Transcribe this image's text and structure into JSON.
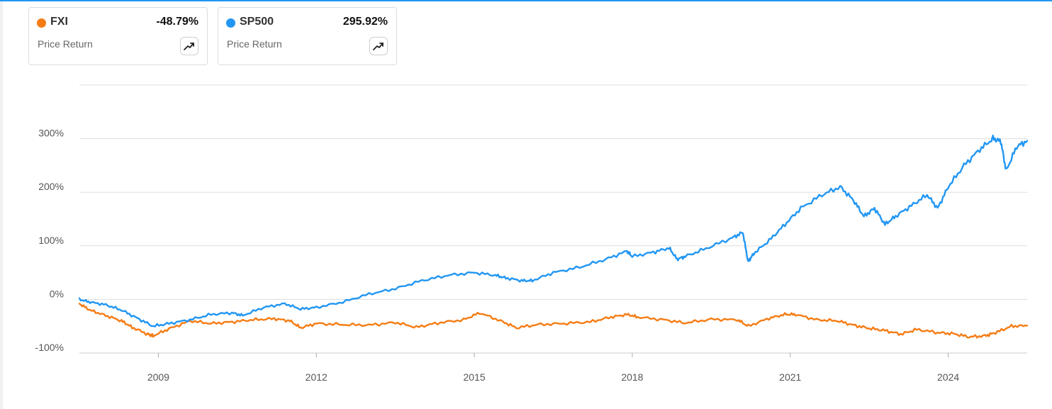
{
  "colors": {
    "fxi": "#f57c14",
    "sp500": "#2196f3",
    "grid": "#dddddd",
    "axis_text": "#555555",
    "accent_bar": "#2196f3"
  },
  "legend_cards": [
    {
      "ticker": "FXI",
      "return_pct": "-48.79%",
      "subtitle": "Price Return",
      "icon": "trend-up-icon"
    },
    {
      "ticker": "SP500",
      "return_pct": "295.92%",
      "subtitle": "Price Return",
      "icon": "trend-up-icon"
    }
  ],
  "chart_data": {
    "type": "line",
    "title": "",
    "xlabel": "",
    "ylabel": "",
    "x_unit": "year",
    "xlim": [
      2007.5,
      2025.5
    ],
    "ylim": [
      -100,
      400
    ],
    "y_ticks": [
      -100,
      0,
      100,
      200,
      300
    ],
    "y_tick_labels": [
      "-100%",
      "0%",
      "100%",
      "200%",
      "300%"
    ],
    "x_ticks": [
      2009,
      2012,
      2015,
      2018,
      2021,
      2024
    ],
    "x_tick_labels": [
      "2009",
      "2012",
      "2015",
      "2018",
      "2021",
      "2024"
    ],
    "grid": true,
    "series": [
      {
        "name": "FXI",
        "color": "#f57c14",
        "x": [
          2007.5,
          2007.7,
          2008.0,
          2008.3,
          2008.5,
          2008.8,
          2008.9,
          2009.2,
          2009.6,
          2010.0,
          2010.4,
          2010.8,
          2011.2,
          2011.5,
          2011.7,
          2012.0,
          2012.5,
          2013.0,
          2013.5,
          2013.9,
          2014.3,
          2014.8,
          2015.1,
          2015.5,
          2015.8,
          2016.2,
          2016.7,
          2017.2,
          2017.6,
          2017.9,
          2018.1,
          2018.6,
          2019.0,
          2019.5,
          2020.0,
          2020.2,
          2020.6,
          2020.9,
          2021.1,
          2021.5,
          2021.9,
          2022.2,
          2022.5,
          2022.8,
          2023.1,
          2023.4,
          2023.8,
          2024.1,
          2024.4,
          2024.7,
          2024.9,
          2025.2,
          2025.5
        ],
        "y": [
          -8,
          -20,
          -30,
          -40,
          -52,
          -65,
          -68,
          -55,
          -40,
          -45,
          -42,
          -38,
          -36,
          -40,
          -53,
          -45,
          -47,
          -48,
          -43,
          -52,
          -44,
          -38,
          -25,
          -40,
          -53,
          -47,
          -45,
          -42,
          -33,
          -28,
          -33,
          -38,
          -44,
          -37,
          -38,
          -50,
          -35,
          -28,
          -28,
          -38,
          -40,
          -48,
          -54,
          -58,
          -65,
          -56,
          -62,
          -64,
          -70,
          -68,
          -62,
          -50,
          -49
        ]
      },
      {
        "name": "SP500",
        "color": "#2196f3",
        "x": [
          2007.5,
          2007.7,
          2008.0,
          2008.3,
          2008.6,
          2008.9,
          2009.2,
          2009.6,
          2010.0,
          2010.4,
          2010.6,
          2011.0,
          2011.4,
          2011.7,
          2012.0,
          2012.5,
          2013.0,
          2013.5,
          2014.0,
          2014.5,
          2015.0,
          2015.4,
          2015.6,
          2015.9,
          2016.1,
          2016.5,
          2017.0,
          2017.5,
          2017.9,
          2018.0,
          2018.4,
          2018.7,
          2018.85,
          2019.0,
          2019.4,
          2019.9,
          2020.1,
          2020.2,
          2020.3,
          2020.6,
          2020.9,
          2021.2,
          2021.6,
          2021.95,
          2022.2,
          2022.4,
          2022.6,
          2022.8,
          2023.0,
          2023.3,
          2023.6,
          2023.8,
          2024.0,
          2024.3,
          2024.6,
          2024.85,
          2025.0,
          2025.1,
          2025.3,
          2025.5
        ],
        "y": [
          0,
          -5,
          -10,
          -20,
          -35,
          -50,
          -45,
          -38,
          -28,
          -25,
          -30,
          -15,
          -8,
          -18,
          -15,
          -5,
          10,
          20,
          35,
          45,
          50,
          45,
          40,
          35,
          35,
          50,
          60,
          75,
          90,
          80,
          88,
          96,
          75,
          80,
          95,
          115,
          125,
          70,
          85,
          110,
          140,
          170,
          195,
          210,
          185,
          155,
          170,
          140,
          155,
          175,
          195,
          170,
          210,
          250,
          280,
          300,
          295,
          240,
          285,
          296
        ]
      }
    ]
  }
}
